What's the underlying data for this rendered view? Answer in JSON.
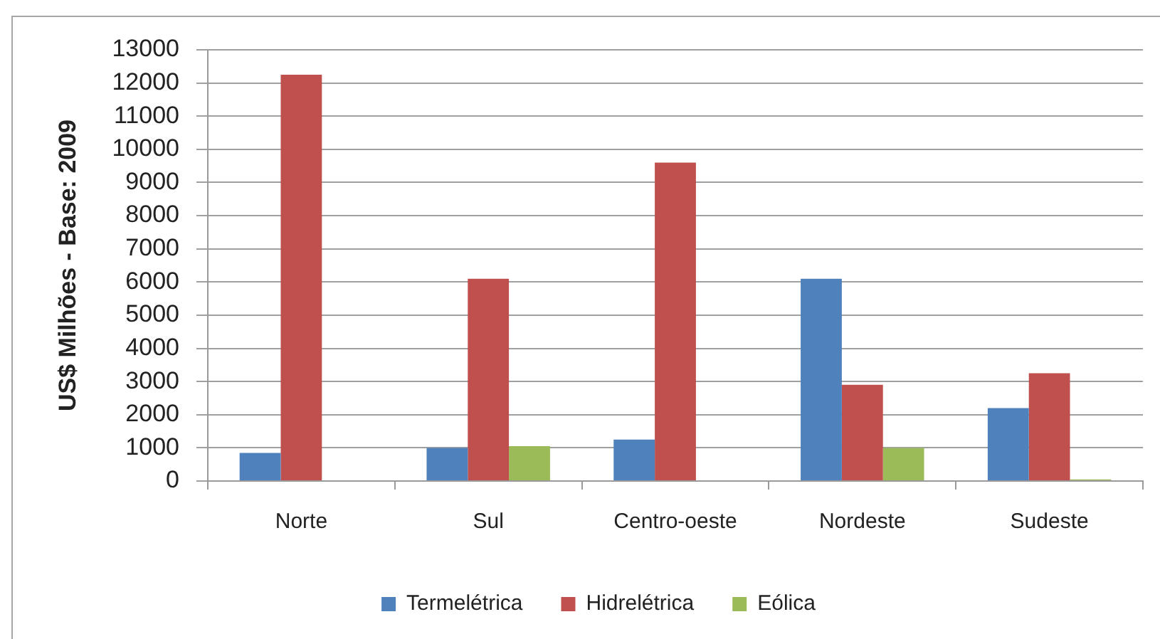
{
  "chart_data": {
    "type": "bar",
    "ylabel": "US$ Milhões - Base: 2009",
    "categories": [
      "Norte",
      "Sul",
      "Centro-oeste",
      "Nordeste",
      "Sudeste"
    ],
    "series": [
      {
        "name": "Termelétrica",
        "color": "#4f81bd",
        "values": [
          850,
          1000,
          1250,
          6100,
          2200
        ]
      },
      {
        "name": "Hidrelétrica",
        "color": "#c0504d",
        "values": [
          12250,
          6100,
          9600,
          2900,
          3250
        ]
      },
      {
        "name": "Eólica",
        "color": "#9bbb59",
        "values": [
          0,
          1050,
          0,
          1000,
          50
        ]
      }
    ],
    "ylim": [
      0,
      13000
    ],
    "yticks": [
      0,
      1000,
      2000,
      3000,
      4000,
      5000,
      6000,
      7000,
      8000,
      9000,
      10000,
      11000,
      12000,
      13000
    ],
    "grid": "y",
    "legend": "bottom"
  }
}
